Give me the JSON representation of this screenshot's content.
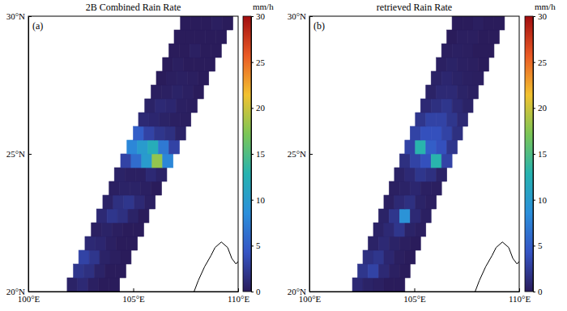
{
  "chart_data": [
    {
      "type": "heatmap",
      "title": "2B Combined Rain Rate",
      "panel_label": "(a)",
      "xlim": [
        100,
        110
      ],
      "xticks": [
        {
          "value": 100,
          "label": "100°E"
        },
        {
          "value": 105,
          "label": "105°E"
        },
        {
          "value": 110,
          "label": "110°E"
        }
      ],
      "ylim": [
        20,
        30
      ],
      "yticks": [
        {
          "value": 20,
          "label": "20°N"
        },
        {
          "value": 25,
          "label": "25°N"
        },
        {
          "value": 30,
          "label": "30°N"
        }
      ],
      "colorbar": {
        "label": "mm/h",
        "range": [
          0,
          30
        ],
        "ticks": [
          0,
          5,
          10,
          15,
          20,
          25,
          30
        ]
      },
      "rows": [
        {
          "lat": 20.25,
          "lon": [
            102.1,
            102.6,
            103.1,
            103.6,
            104.1
          ],
          "values": [
            0.5,
            1,
            0.3,
            0,
            0
          ]
        },
        {
          "lat": 20.75,
          "lon": [
            102.4,
            102.9,
            103.4,
            103.9,
            104.4
          ],
          "values": [
            2,
            1.5,
            0.5,
            0,
            0
          ]
        },
        {
          "lat": 21.25,
          "lon": [
            102.65,
            103.15,
            103.65,
            104.15,
            104.65
          ],
          "values": [
            3,
            2,
            0.5,
            0.2,
            0
          ]
        },
        {
          "lat": 21.75,
          "lon": [
            102.95,
            103.45,
            103.95,
            104.45,
            104.95
          ],
          "values": [
            1,
            0.8,
            0.3,
            0,
            0
          ]
        },
        {
          "lat": 22.25,
          "lon": [
            103.25,
            103.75,
            104.25,
            104.75,
            105.25
          ],
          "values": [
            0.3,
            0.5,
            0.2,
            0,
            0
          ]
        },
        {
          "lat": 22.75,
          "lon": [
            103.5,
            104.0,
            104.5,
            105.0,
            105.5
          ],
          "values": [
            1,
            2,
            1.5,
            0.5,
            0
          ]
        },
        {
          "lat": 23.25,
          "lon": [
            103.8,
            104.3,
            104.8,
            105.3,
            105.8
          ],
          "values": [
            0.5,
            1.5,
            2,
            1,
            0.3
          ]
        },
        {
          "lat": 23.75,
          "lon": [
            104.1,
            104.6,
            105.1,
            105.6,
            106.1
          ],
          "values": [
            0.3,
            0.5,
            0.5,
            0.3,
            0
          ]
        },
        {
          "lat": 24.25,
          "lon": [
            104.35,
            104.85,
            105.35,
            105.85,
            106.35
          ],
          "values": [
            0.5,
            0.3,
            0.3,
            1,
            0.5
          ]
        },
        {
          "lat": 24.75,
          "lon": [
            104.65,
            105.15,
            105.65,
            106.15,
            106.65
          ],
          "values": [
            3,
            6,
            10,
            18,
            8
          ]
        },
        {
          "lat": 25.25,
          "lon": [
            104.95,
            105.45,
            105.95,
            106.45,
            106.95
          ],
          "values": [
            8,
            10,
            12,
            7,
            3
          ]
        },
        {
          "lat": 25.75,
          "lon": [
            105.25,
            105.75,
            106.25,
            106.75,
            107.25
          ],
          "values": [
            5,
            3,
            2,
            1.5,
            0.5
          ]
        },
        {
          "lat": 26.25,
          "lon": [
            105.5,
            106.0,
            106.5,
            107.0,
            107.5
          ],
          "values": [
            1,
            0.8,
            0.5,
            0.3,
            0.2
          ]
        },
        {
          "lat": 26.75,
          "lon": [
            105.8,
            106.3,
            106.8,
            107.3,
            107.8
          ],
          "values": [
            0.5,
            1,
            0.8,
            0.3,
            0.2
          ]
        },
        {
          "lat": 27.25,
          "lon": [
            106.1,
            106.6,
            107.1,
            107.6,
            108.1
          ],
          "values": [
            0.2,
            0.3,
            0.5,
            0.3,
            0
          ]
        },
        {
          "lat": 27.75,
          "lon": [
            106.35,
            106.85,
            107.35,
            107.85,
            108.35
          ],
          "values": [
            0,
            0.2,
            0.3,
            0.2,
            0
          ]
        },
        {
          "lat": 28.25,
          "lon": [
            106.65,
            107.15,
            107.65,
            108.15,
            108.65
          ],
          "values": [
            0,
            0.2,
            0,
            0,
            0
          ]
        },
        {
          "lat": 28.75,
          "lon": [
            106.95,
            107.45,
            107.95,
            108.45,
            108.95
          ],
          "values": [
            0,
            0,
            0.3,
            0,
            0
          ]
        },
        {
          "lat": 29.25,
          "lon": [
            107.2,
            107.7,
            108.2,
            108.7,
            109.2
          ],
          "values": [
            0,
            0,
            0,
            0,
            0
          ]
        },
        {
          "lat": 29.75,
          "lon": [
            107.5,
            108.0,
            108.5,
            109.0,
            109.5
          ],
          "values": [
            0,
            0,
            0,
            0.2,
            0
          ]
        }
      ],
      "coastline": {
        "lon": [
          107.9,
          108.1,
          108.4,
          108.7,
          108.9,
          109.2,
          109.5,
          109.7,
          109.9,
          110
        ],
        "lat": [
          20.0,
          20.4,
          20.9,
          21.3,
          21.6,
          21.8,
          21.6,
          21.2,
          21.0,
          21.1
        ]
      }
    },
    {
      "type": "heatmap",
      "title": "retrieved Rain Rate",
      "panel_label": "(b)",
      "xlim": [
        100,
        110
      ],
      "xticks": [
        {
          "value": 100,
          "label": "100°E"
        },
        {
          "value": 105,
          "label": "105°E"
        },
        {
          "value": 110,
          "label": "110°E"
        }
      ],
      "ylim": [
        20,
        30
      ],
      "yticks": [
        {
          "value": 20,
          "label": "20°N"
        },
        {
          "value": 25,
          "label": "25°N"
        },
        {
          "value": 30,
          "label": "30°N"
        }
      ],
      "colorbar": {
        "label": "mm/h",
        "range": [
          0,
          30
        ],
        "ticks": [
          0,
          5,
          10,
          15,
          20,
          25,
          30
        ]
      },
      "rows": [
        {
          "lat": 20.25,
          "lon": [
            102.3,
            102.8,
            103.3,
            103.8,
            104.3
          ],
          "values": [
            1,
            0.5,
            0.3,
            0,
            0
          ]
        },
        {
          "lat": 20.75,
          "lon": [
            102.55,
            103.05,
            103.55,
            104.05,
            104.55
          ],
          "values": [
            2,
            3,
            1,
            0.3,
            0
          ]
        },
        {
          "lat": 21.25,
          "lon": [
            102.8,
            103.3,
            103.8,
            104.3,
            104.8
          ],
          "values": [
            1.5,
            2,
            0.8,
            0.2,
            0
          ]
        },
        {
          "lat": 21.75,
          "lon": [
            103.05,
            103.55,
            104.05,
            104.55,
            105.05
          ],
          "values": [
            0.5,
            1,
            0.5,
            0.2,
            0
          ]
        },
        {
          "lat": 22.25,
          "lon": [
            103.3,
            103.8,
            104.3,
            104.8,
            105.3
          ],
          "values": [
            0.5,
            1,
            2,
            0.5,
            0.2
          ]
        },
        {
          "lat": 22.75,
          "lon": [
            103.55,
            104.05,
            104.55,
            105.05,
            105.55
          ],
          "values": [
            0.5,
            2,
            9,
            1,
            0.3
          ]
        },
        {
          "lat": 23.25,
          "lon": [
            103.8,
            104.3,
            104.8,
            105.3,
            105.8
          ],
          "values": [
            0.3,
            1,
            1.5,
            0.5,
            0.2
          ]
        },
        {
          "lat": 23.75,
          "lon": [
            104.05,
            104.55,
            105.05,
            105.55,
            106.05
          ],
          "values": [
            0.3,
            0.5,
            0.8,
            0.3,
            0.2
          ]
        },
        {
          "lat": 24.25,
          "lon": [
            104.3,
            104.8,
            105.3,
            105.8,
            106.3
          ],
          "values": [
            0.5,
            1,
            2,
            1.5,
            0.5
          ]
        },
        {
          "lat": 24.75,
          "lon": [
            104.55,
            105.05,
            105.55,
            106.05,
            106.55
          ],
          "values": [
            1.5,
            3,
            4,
            13,
            3
          ]
        },
        {
          "lat": 25.25,
          "lon": [
            104.8,
            105.3,
            105.8,
            106.3,
            106.8
          ],
          "values": [
            3,
            13,
            5,
            4,
            2
          ]
        },
        {
          "lat": 25.75,
          "lon": [
            105.05,
            105.55,
            106.05,
            106.55,
            107.05
          ],
          "values": [
            3,
            4,
            4,
            3,
            1.5
          ]
        },
        {
          "lat": 26.25,
          "lon": [
            105.3,
            105.8,
            106.3,
            106.8,
            107.3
          ],
          "values": [
            2,
            3,
            3,
            2,
            1
          ]
        },
        {
          "lat": 26.75,
          "lon": [
            105.55,
            106.05,
            106.55,
            107.05,
            107.55
          ],
          "values": [
            1,
            1.5,
            2,
            1,
            0.5
          ]
        },
        {
          "lat": 27.25,
          "lon": [
            105.8,
            106.3,
            106.8,
            107.3,
            107.8
          ],
          "values": [
            0.5,
            1,
            1,
            0.5,
            0.3
          ]
        },
        {
          "lat": 27.75,
          "lon": [
            106.05,
            106.55,
            107.05,
            107.55,
            108.05
          ],
          "values": [
            0.5,
            0.8,
            0.5,
            0.3,
            0.2
          ]
        },
        {
          "lat": 28.25,
          "lon": [
            106.3,
            106.8,
            107.3,
            107.8,
            108.3
          ],
          "values": [
            0.3,
            0.5,
            0.3,
            0.2,
            0
          ]
        },
        {
          "lat": 28.75,
          "lon": [
            106.55,
            107.05,
            107.55,
            108.05,
            108.55
          ],
          "values": [
            0.2,
            0.3,
            0.2,
            0,
            0
          ]
        },
        {
          "lat": 29.25,
          "lon": [
            106.8,
            107.3,
            107.8,
            108.3,
            108.8
          ],
          "values": [
            0,
            0.2,
            0.2,
            0,
            0
          ]
        },
        {
          "lat": 29.75,
          "lon": [
            107.05,
            107.55,
            108.05,
            108.55,
            109.05
          ],
          "values": [
            0,
            0,
            0.2,
            0,
            0
          ]
        }
      ],
      "coastline": {
        "lon": [
          107.9,
          108.1,
          108.4,
          108.7,
          108.9,
          109.2,
          109.5,
          109.7,
          109.9,
          110
        ],
        "lat": [
          20.0,
          20.4,
          20.9,
          21.3,
          21.6,
          21.8,
          21.6,
          21.2,
          21.0,
          21.1
        ]
      }
    }
  ]
}
